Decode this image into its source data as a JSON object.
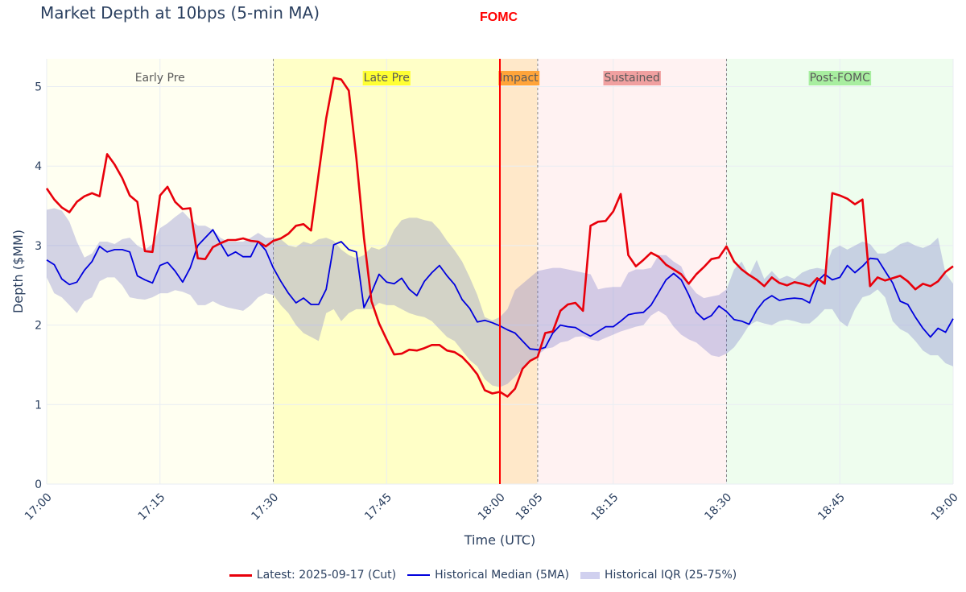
{
  "title": "Market Depth at 10bps (5-min MA)",
  "event_label": "FOMC",
  "colors": {
    "latest": "#e8000b",
    "median": "#0000dd",
    "iqr_fill": "rgba(110,110,200,0.30)",
    "event": "#ff0000",
    "grid": "#e9edf3",
    "axis_text": "#2a3f5f"
  },
  "chart_data": {
    "type": "line",
    "title": "Market Depth at 10bps (5-min MA)",
    "xlabel": "Time (UTC)",
    "ylabel": "Depth ($MM)",
    "x_unit": "minutes since 17:00",
    "xlim": [
      0,
      120
    ],
    "ylim": [
      0,
      5.35
    ],
    "y_ticks": [
      0,
      1,
      2,
      3,
      4,
      5
    ],
    "x_ticks": [
      {
        "t": 0,
        "label": "17:00"
      },
      {
        "t": 15,
        "label": "17:15"
      },
      {
        "t": 30,
        "label": "17:30"
      },
      {
        "t": 45,
        "label": "17:45"
      },
      {
        "t": 60,
        "label": "18:00"
      },
      {
        "t": 65,
        "label": "18:05"
      },
      {
        "t": 75,
        "label": "18:15"
      },
      {
        "t": 90,
        "label": "18:30"
      },
      {
        "t": 105,
        "label": "18:45"
      },
      {
        "t": 120,
        "label": "19:00"
      }
    ],
    "event_time": 60,
    "regions": [
      {
        "label": "Early Pre",
        "start": 0,
        "end": 30,
        "fill": "rgba(255,255,200,0.25)",
        "label_bg": "rgba(0,0,0,0)"
      },
      {
        "label": "Late Pre",
        "start": 30,
        "end": 60,
        "fill": "rgba(255,255,130,0.45)",
        "label_bg": "#ffff33"
      },
      {
        "label": "Impact",
        "start": 60,
        "end": 65,
        "fill": "rgba(255,165,40,0.25)",
        "label_bg": "#ffa43a"
      },
      {
        "label": "Sustained",
        "start": 65,
        "end": 90,
        "fill": "rgba(255,160,160,0.14)",
        "label_bg": "#f0a0a0"
      },
      {
        "label": "Post-FOMC",
        "start": 90,
        "end": 120,
        "fill": "rgba(150,240,150,0.16)",
        "label_bg": "#a8eea0"
      }
    ],
    "series": [
      {
        "name": "Latest: 2025-09-17 (Cut)",
        "role": "latest",
        "x": [
          0,
          1,
          2,
          3,
          4,
          5,
          6,
          7,
          8,
          9,
          10,
          11,
          12,
          13,
          14,
          15,
          16,
          17,
          18,
          19,
          20,
          21,
          22,
          23,
          24,
          25,
          26,
          27,
          28,
          29,
          30,
          31,
          32,
          33,
          34,
          35,
          36,
          37,
          38,
          39,
          40,
          41,
          42,
          43,
          44,
          45,
          46,
          47,
          48,
          49,
          50,
          51,
          52,
          53,
          54,
          55,
          56,
          57,
          58,
          59,
          60,
          61,
          62,
          63,
          64,
          65,
          66,
          67,
          68,
          69,
          70,
          71,
          72,
          73,
          74,
          75,
          76,
          77,
          78,
          79,
          80,
          81,
          82,
          83,
          84,
          85,
          86,
          87,
          88,
          89,
          90,
          91,
          92,
          93,
          94,
          95,
          96,
          97,
          98,
          99,
          100,
          101,
          102,
          103,
          104,
          105,
          106,
          107,
          108,
          109,
          110,
          111,
          112,
          113,
          114,
          115,
          116,
          117,
          118,
          119,
          120
        ],
        "values": [
          3.72,
          3.58,
          3.48,
          3.42,
          3.55,
          3.62,
          3.66,
          3.62,
          4.15,
          4.02,
          3.85,
          3.63,
          3.55,
          2.93,
          2.92,
          3.63,
          3.74,
          3.55,
          3.46,
          3.47,
          2.84,
          2.83,
          2.98,
          3.03,
          3.07,
          3.07,
          3.09,
          3.06,
          3.05,
          2.99,
          3.06,
          3.09,
          3.15,
          3.25,
          3.27,
          3.19,
          3.9,
          4.6,
          5.11,
          5.09,
          4.95,
          4.1,
          3.1,
          2.3,
          2.02,
          1.82,
          1.63,
          1.64,
          1.69,
          1.68,
          1.71,
          1.75,
          1.75,
          1.68,
          1.66,
          1.6,
          1.5,
          1.38,
          1.18,
          1.14,
          1.16,
          1.1,
          1.2,
          1.45,
          1.55,
          1.6,
          1.9,
          1.92,
          2.18,
          2.26,
          2.28,
          2.18,
          3.25,
          3.3,
          3.31,
          3.43,
          3.65,
          2.88,
          2.74,
          2.82,
          2.91,
          2.86,
          2.76,
          2.7,
          2.64,
          2.52,
          2.64,
          2.73,
          2.83,
          2.85,
          2.99,
          2.8,
          2.7,
          2.63,
          2.57,
          2.49,
          2.6,
          2.53,
          2.5,
          2.54,
          2.52,
          2.49,
          2.59,
          2.52,
          3.66,
          3.63,
          3.59,
          3.52,
          3.58,
          2.49,
          2.6,
          2.56,
          2.59,
          2.62,
          2.55,
          2.45,
          2.52,
          2.49,
          2.55,
          2.67,
          2.74
        ]
      },
      {
        "name": "Historical Median (5MA)",
        "role": "median",
        "x": [
          0,
          1,
          2,
          3,
          4,
          5,
          6,
          7,
          8,
          9,
          10,
          11,
          12,
          13,
          14,
          15,
          16,
          17,
          18,
          19,
          20,
          21,
          22,
          23,
          24,
          25,
          26,
          27,
          28,
          29,
          30,
          31,
          32,
          33,
          34,
          35,
          36,
          37,
          38,
          39,
          40,
          41,
          42,
          43,
          44,
          45,
          46,
          47,
          48,
          49,
          50,
          51,
          52,
          53,
          54,
          55,
          56,
          57,
          58,
          59,
          60,
          61,
          62,
          63,
          64,
          65,
          66,
          67,
          68,
          69,
          70,
          71,
          72,
          73,
          74,
          75,
          76,
          77,
          78,
          79,
          80,
          81,
          82,
          83,
          84,
          85,
          86,
          87,
          88,
          89,
          90,
          91,
          92,
          93,
          94,
          95,
          96,
          97,
          98,
          99,
          100,
          101,
          102,
          103,
          104,
          105,
          106,
          107,
          108,
          109,
          110,
          111,
          112,
          113,
          114,
          115,
          116,
          117,
          118,
          119,
          120
        ],
        "values": [
          2.82,
          2.76,
          2.58,
          2.51,
          2.54,
          2.69,
          2.8,
          2.99,
          2.92,
          2.95,
          2.95,
          2.92,
          2.62,
          2.57,
          2.53,
          2.75,
          2.79,
          2.68,
          2.54,
          2.72,
          3.0,
          3.1,
          3.2,
          3.03,
          2.87,
          2.92,
          2.86,
          2.86,
          3.05,
          2.94,
          2.72,
          2.55,
          2.4,
          2.28,
          2.34,
          2.26,
          2.26,
          2.45,
          3.01,
          3.05,
          2.95,
          2.92,
          2.22,
          2.41,
          2.64,
          2.54,
          2.52,
          2.59,
          2.45,
          2.37,
          2.55,
          2.66,
          2.75,
          2.62,
          2.51,
          2.32,
          2.21,
          2.04,
          2.06,
          2.03,
          1.99,
          1.94,
          1.9,
          1.8,
          1.7,
          1.69,
          1.72,
          1.9,
          2.0,
          1.98,
          1.97,
          1.91,
          1.86,
          1.92,
          1.98,
          1.98,
          2.05,
          2.13,
          2.15,
          2.16,
          2.25,
          2.41,
          2.57,
          2.65,
          2.57,
          2.38,
          2.16,
          2.07,
          2.12,
          2.24,
          2.17,
          2.07,
          2.05,
          2.01,
          2.19,
          2.31,
          2.37,
          2.31,
          2.33,
          2.34,
          2.33,
          2.28,
          2.55,
          2.64,
          2.57,
          2.6,
          2.75,
          2.66,
          2.74,
          2.84,
          2.83,
          2.68,
          2.53,
          2.3,
          2.26,
          2.1,
          1.96,
          1.85,
          1.96,
          1.91,
          2.08
        ]
      },
      {
        "name": "Historical IQR (25-75%)",
        "role": "iqr",
        "x": [
          0,
          1,
          2,
          3,
          4,
          5,
          6,
          7,
          8,
          9,
          10,
          11,
          12,
          13,
          14,
          15,
          16,
          17,
          18,
          19,
          20,
          21,
          22,
          23,
          24,
          25,
          26,
          27,
          28,
          29,
          30,
          31,
          32,
          33,
          34,
          35,
          36,
          37,
          38,
          39,
          40,
          41,
          42,
          43,
          44,
          45,
          46,
          47,
          48,
          49,
          50,
          51,
          52,
          53,
          54,
          55,
          56,
          57,
          58,
          59,
          60,
          61,
          62,
          63,
          64,
          65,
          66,
          67,
          68,
          69,
          70,
          71,
          72,
          73,
          74,
          75,
          76,
          77,
          78,
          79,
          80,
          81,
          82,
          83,
          84,
          85,
          86,
          87,
          88,
          89,
          90,
          91,
          92,
          93,
          94,
          95,
          96,
          97,
          98,
          99,
          100,
          101,
          102,
          103,
          104,
          105,
          106,
          107,
          108,
          109,
          110,
          111,
          112,
          113,
          114,
          115,
          116,
          117,
          118,
          119,
          120
        ],
        "lower": [
          2.6,
          2.4,
          2.35,
          2.25,
          2.15,
          2.3,
          2.35,
          2.55,
          2.6,
          2.6,
          2.5,
          2.35,
          2.33,
          2.32,
          2.35,
          2.4,
          2.4,
          2.44,
          2.42,
          2.38,
          2.25,
          2.25,
          2.3,
          2.25,
          2.22,
          2.2,
          2.18,
          2.25,
          2.35,
          2.4,
          2.38,
          2.25,
          2.15,
          2.0,
          1.9,
          1.85,
          1.8,
          2.15,
          2.2,
          2.05,
          2.15,
          2.2,
          2.2,
          2.2,
          2.28,
          2.25,
          2.25,
          2.2,
          2.15,
          2.12,
          2.1,
          2.05,
          1.95,
          1.85,
          1.8,
          1.68,
          1.56,
          1.48,
          1.32,
          1.24,
          1.22,
          1.26,
          1.35,
          1.45,
          1.55,
          1.62,
          1.7,
          1.72,
          1.78,
          1.8,
          1.85,
          1.86,
          1.82,
          1.8,
          1.84,
          1.88,
          1.92,
          1.95,
          1.98,
          2.0,
          2.12,
          2.18,
          2.12,
          1.98,
          1.88,
          1.82,
          1.78,
          1.7,
          1.62,
          1.6,
          1.64,
          1.72,
          1.85,
          2.0,
          2.05,
          2.02,
          2.0,
          2.05,
          2.07,
          2.05,
          2.02,
          2.02,
          2.1,
          2.2,
          2.2,
          2.05,
          1.98,
          2.2,
          2.35,
          2.38,
          2.45,
          2.35,
          2.05,
          1.95,
          1.9,
          1.8,
          1.68,
          1.62,
          1.62,
          1.52,
          1.48
        ],
        "upper": [
          3.45,
          3.47,
          3.44,
          3.3,
          3.05,
          2.85,
          2.9,
          3.05,
          3.05,
          3.02,
          3.08,
          3.1,
          3.0,
          2.95,
          3.02,
          3.22,
          3.28,
          3.36,
          3.43,
          3.33,
          3.25,
          3.25,
          3.2,
          3.1,
          3.05,
          3.05,
          3.05,
          3.1,
          3.16,
          3.1,
          3.1,
          3.08,
          3.0,
          2.98,
          3.05,
          3.02,
          3.08,
          3.1,
          3.06,
          2.95,
          2.88,
          2.84,
          2.88,
          2.98,
          2.95,
          3.0,
          3.2,
          3.32,
          3.35,
          3.35,
          3.32,
          3.3,
          3.2,
          3.06,
          2.94,
          2.8,
          2.6,
          2.38,
          2.1,
          2.06,
          2.1,
          2.2,
          2.44,
          2.52,
          2.6,
          2.68,
          2.7,
          2.72,
          2.72,
          2.7,
          2.68,
          2.66,
          2.64,
          2.45,
          2.47,
          2.48,
          2.48,
          2.66,
          2.7,
          2.7,
          2.72,
          2.88,
          2.88,
          2.8,
          2.74,
          2.52,
          2.4,
          2.34,
          2.36,
          2.38,
          2.45,
          2.7,
          2.8,
          2.62,
          2.82,
          2.58,
          2.68,
          2.58,
          2.62,
          2.58,
          2.66,
          2.7,
          2.72,
          2.7,
          2.95,
          3.0,
          2.95,
          3.0,
          3.05,
          3.02,
          2.9,
          2.9,
          2.95,
          3.02,
          3.05,
          3.0,
          2.97,
          3.01,
          3.1,
          2.65,
          2.52
        ]
      }
    ]
  },
  "legend": {
    "latest_label": "Latest: 2025-09-17 (Cut)",
    "median_label": "Historical Median (5MA)",
    "iqr_label": "Historical IQR (25-75%)"
  }
}
